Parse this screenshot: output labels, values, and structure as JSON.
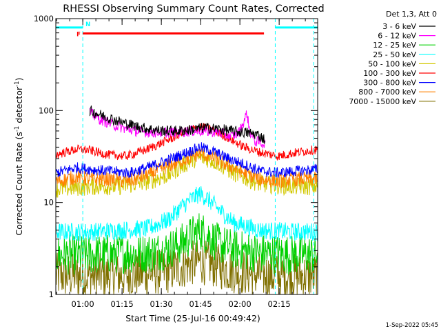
{
  "chart_data": {
    "type": "line",
    "title": "RHESSI Observing Summary Count Rates, Corrected",
    "xlabel": "Start Time (25-Jul-16 00:49:42)",
    "ylabel": "Corrected Count Rate (s⁻¹ detector⁻¹)",
    "ylabel_main": "Corrected Count Rate (s",
    "ylabel_sup1": "-1",
    "ylabel_mid": " detector",
    "ylabel_sup2": "-1",
    "ylabel_end": ")",
    "y_scale": "log",
    "ylim": [
      1,
      1000
    ],
    "xlim_minutes": [
      0,
      100
    ],
    "x_ticks": [
      {
        "label": "01:00",
        "minute": 10.3
      },
      {
        "label": "01:15",
        "minute": 25.3
      },
      {
        "label": "01:30",
        "minute": 40.3
      },
      {
        "label": "01:45",
        "minute": 55.3
      },
      {
        "label": "02:00",
        "minute": 70.3
      },
      {
        "label": "02:15",
        "minute": 85.3
      }
    ],
    "y_ticks": [
      {
        "label": "1",
        "value": 1
      },
      {
        "label": "10",
        "value": 10
      },
      {
        "label": "100",
        "value": 100
      },
      {
        "label": "1000",
        "value": 1000
      }
    ],
    "legend_title": "Det 1,3, Att 0",
    "legend_placement": "top-right",
    "series": [
      {
        "name": "3 - 6 keV",
        "color": "#000000",
        "values": [
          [
            13,
            100
          ],
          [
            17,
            90
          ],
          [
            22,
            80
          ],
          [
            27,
            72
          ],
          [
            32,
            66
          ],
          [
            37,
            62
          ],
          [
            42,
            60
          ],
          [
            47,
            60
          ],
          [
            52,
            62
          ],
          [
            57,
            65
          ],
          [
            62,
            63
          ],
          [
            67,
            60
          ],
          [
            72,
            58
          ],
          [
            77,
            55
          ],
          [
            80,
            48
          ]
        ]
      },
      {
        "name": "6 - 12 keV",
        "color": "#ff00ff",
        "values": [
          [
            13,
            95
          ],
          [
            17,
            80
          ],
          [
            22,
            70
          ],
          [
            27,
            63
          ],
          [
            32,
            59
          ],
          [
            37,
            58
          ],
          [
            42,
            58
          ],
          [
            47,
            58
          ],
          [
            52,
            60
          ],
          [
            57,
            60
          ],
          [
            62,
            58
          ],
          [
            67,
            52
          ],
          [
            70,
            58
          ],
          [
            72,
            78
          ],
          [
            73,
            95
          ],
          [
            74,
            60
          ],
          [
            76,
            47
          ],
          [
            80,
            43
          ]
        ]
      },
      {
        "name": "12 - 25 keV",
        "color": "#00d000",
        "values": [
          [
            0,
            2.7
          ],
          [
            13,
            2.7
          ],
          [
            25,
            2.8
          ],
          [
            35,
            2.8
          ],
          [
            43,
            3.1
          ],
          [
            48,
            3.6
          ],
          [
            52,
            4.4
          ],
          [
            55,
            5.0
          ],
          [
            58,
            4.4
          ],
          [
            62,
            3.6
          ],
          [
            68,
            3.1
          ],
          [
            78,
            2.8
          ],
          [
            90,
            2.7
          ],
          [
            100,
            2.7
          ]
        ]
      },
      {
        "name": "25 - 50 keV",
        "color": "#00ffff",
        "values": [
          [
            0,
            4.8
          ],
          [
            13,
            4.8
          ],
          [
            25,
            5.0
          ],
          [
            35,
            5.2
          ],
          [
            43,
            6.5
          ],
          [
            48,
            9.0
          ],
          [
            52,
            11.0
          ],
          [
            55,
            12.5
          ],
          [
            58,
            11.0
          ],
          [
            62,
            8.5
          ],
          [
            68,
            6.0
          ],
          [
            78,
            5.0
          ],
          [
            90,
            4.8
          ],
          [
            100,
            4.8
          ]
        ]
      },
      {
        "name": "50 - 100 keV",
        "color": "#d2c800",
        "values": [
          [
            0,
            14
          ],
          [
            13,
            15
          ],
          [
            25,
            15
          ],
          [
            35,
            17
          ],
          [
            43,
            20
          ],
          [
            48,
            25
          ],
          [
            52,
            29
          ],
          [
            55,
            31
          ],
          [
            58,
            30
          ],
          [
            62,
            27
          ],
          [
            68,
            21
          ],
          [
            78,
            16
          ],
          [
            90,
            15
          ],
          [
            100,
            15
          ]
        ]
      },
      {
        "name": "100 - 300 keV",
        "color": "#ff0000",
        "values": [
          [
            0,
            33
          ],
          [
            8,
            38
          ],
          [
            13,
            37
          ],
          [
            20,
            33
          ],
          [
            27,
            32
          ],
          [
            35,
            38
          ],
          [
            43,
            48
          ],
          [
            50,
            60
          ],
          [
            55,
            67
          ],
          [
            60,
            62
          ],
          [
            66,
            50
          ],
          [
            72,
            40
          ],
          [
            78,
            35
          ],
          [
            85,
            32
          ],
          [
            92,
            35
          ],
          [
            100,
            38
          ]
        ]
      },
      {
        "name": "300 - 800 keV",
        "color": "#0000ff",
        "values": [
          [
            0,
            21
          ],
          [
            8,
            24
          ],
          [
            13,
            23
          ],
          [
            20,
            22
          ],
          [
            28,
            21
          ],
          [
            35,
            24
          ],
          [
            43,
            29
          ],
          [
            50,
            35
          ],
          [
            55,
            40
          ],
          [
            60,
            36
          ],
          [
            66,
            30
          ],
          [
            72,
            26
          ],
          [
            78,
            22
          ],
          [
            85,
            21
          ],
          [
            92,
            22
          ],
          [
            100,
            23
          ]
        ]
      },
      {
        "name": "800 - 7000 keV",
        "color": "#ff8000",
        "values": [
          [
            0,
            17
          ],
          [
            8,
            19
          ],
          [
            13,
            18
          ],
          [
            20,
            18
          ],
          [
            28,
            17
          ],
          [
            35,
            20
          ],
          [
            43,
            25
          ],
          [
            50,
            30
          ],
          [
            55,
            34
          ],
          [
            60,
            31
          ],
          [
            66,
            25
          ],
          [
            72,
            21
          ],
          [
            78,
            18
          ],
          [
            85,
            17
          ],
          [
            92,
            18
          ],
          [
            100,
            18
          ]
        ]
      },
      {
        "name": "7000 - 15000 keV",
        "color": "#807000",
        "values": [
          [
            0,
            1.6
          ],
          [
            13,
            1.6
          ],
          [
            25,
            1.6
          ],
          [
            35,
            1.7
          ],
          [
            43,
            1.8
          ],
          [
            50,
            2.1
          ],
          [
            55,
            2.3
          ],
          [
            60,
            2.1
          ],
          [
            68,
            1.8
          ],
          [
            80,
            1.6
          ],
          [
            100,
            1.6
          ]
        ]
      }
    ],
    "annotations": [
      {
        "label": "N",
        "kind": "night",
        "color": "#00ffff",
        "segments": [
          [
            0,
            10.3
          ],
          [
            83.8,
            100
          ]
        ],
        "y": 800
      },
      {
        "label": "F",
        "kind": "flare",
        "color": "#ff0000",
        "segments": [
          [
            10.3,
            79.5
          ]
        ],
        "y": 690
      }
    ],
    "night_boundaries_minutes": [
      10.3,
      83.8,
      98.5
    ]
  },
  "footer_date": "1-Sep-2022 05:45"
}
